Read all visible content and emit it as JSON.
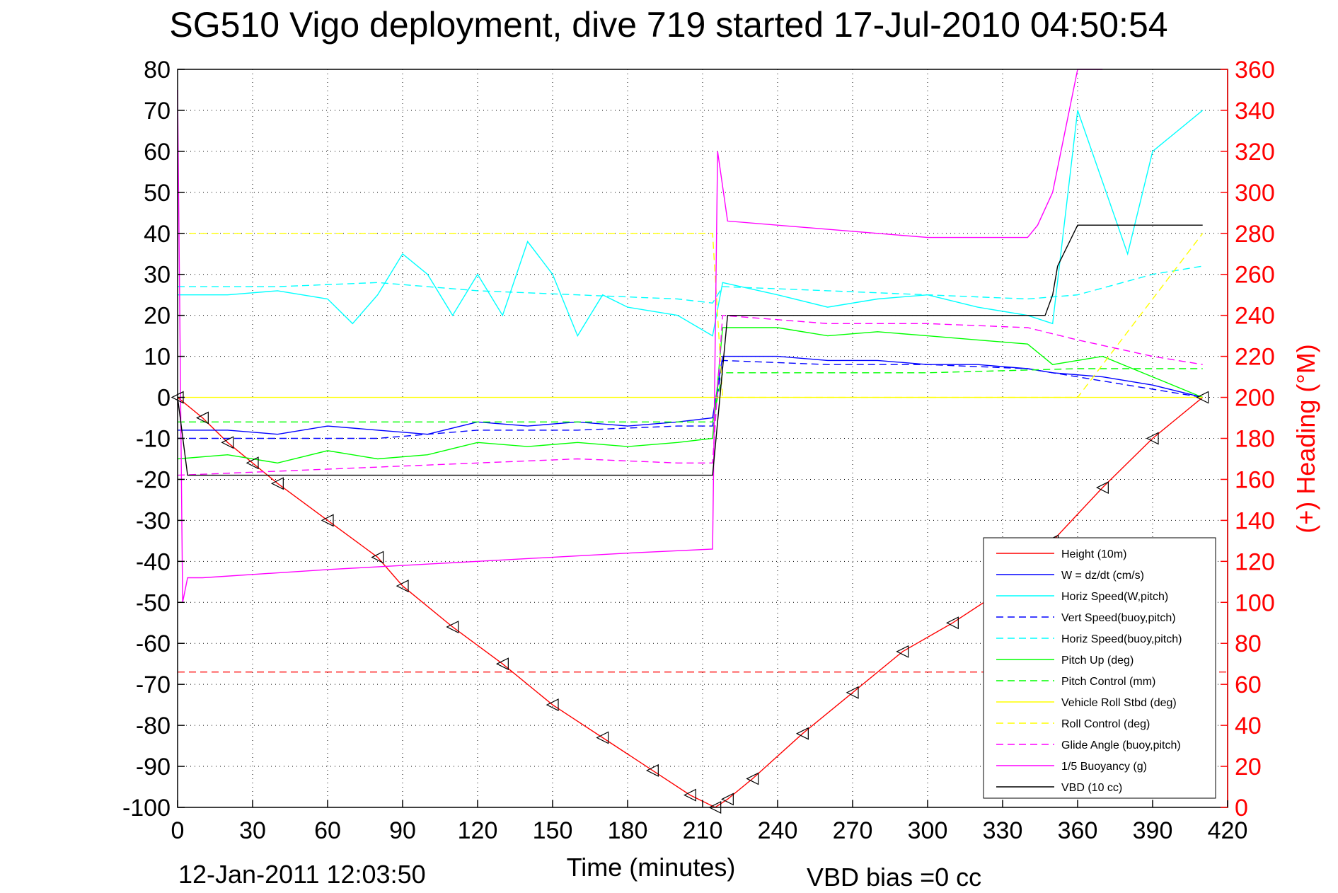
{
  "chart_data": {
    "type": "line",
    "title": "SG510 Vigo deployment, dive 719 started 17-Jul-2010 04:50:54",
    "xlabel": "Time (minutes)",
    "ylabel_right": "(+) Heading (°M)",
    "footer_date": "12-Jan-2011 12:03:50",
    "footer_bias": "VBD bias =0 cc",
    "xlim": [
      0,
      420
    ],
    "ylim_left": [
      -100,
      80
    ],
    "ylim_right": [
      0,
      360
    ],
    "grid": true,
    "legend_position": "bottom-right",
    "x_ticks": [
      "0",
      "30",
      "60",
      "90",
      "120",
      "150",
      "180",
      "210",
      "240",
      "270",
      "300",
      "330",
      "360",
      "390",
      "420"
    ],
    "y_ticks_left": [
      "80",
      "70",
      "60",
      "50",
      "40",
      "30",
      "20",
      "10",
      "0",
      "-10",
      "-20",
      "-30",
      "-40",
      "-50",
      "-60",
      "-70",
      "-80",
      "-90",
      "-100"
    ],
    "y_ticks_right": [
      "360",
      "340",
      "320",
      "300",
      "280",
      "260",
      "240",
      "220",
      "200",
      "180",
      "160",
      "140",
      "120",
      "100",
      "80",
      "60",
      "40",
      "20",
      "0"
    ],
    "series": [
      {
        "name": "Height (10m)",
        "color": "#ff0000",
        "style": "solid",
        "x": [
          0,
          10,
          20,
          30,
          40,
          60,
          80,
          90,
          110,
          130,
          150,
          170,
          190,
          205,
          215,
          220,
          230,
          250,
          270,
          290,
          310,
          330,
          350,
          370,
          390,
          410
        ],
        "y": [
          0,
          -5,
          -11,
          -16,
          -21,
          -30,
          -39,
          -46,
          -56,
          -65,
          -75,
          -83,
          -91,
          -97,
          -100,
          -98,
          -93,
          -82,
          -72,
          -62,
          -55,
          -47,
          -35,
          -22,
          -10,
          0
        ]
      },
      {
        "name": "W = dz/dt (cm/s)",
        "color": "#0000ff",
        "style": "solid",
        "x": [
          0,
          20,
          40,
          60,
          80,
          100,
          120,
          140,
          160,
          180,
          200,
          214,
          218,
          240,
          260,
          280,
          300,
          320,
          340,
          350,
          370,
          390,
          410
        ],
        "y": [
          -8,
          -8,
          -9,
          -7,
          -8,
          -9,
          -6,
          -7,
          -6,
          -7,
          -6,
          -5,
          10,
          10,
          9,
          9,
          8,
          8,
          7,
          6,
          5,
          3,
          0
        ]
      },
      {
        "name": "Horiz Speed(W,pitch)",
        "color": "#00ffff",
        "style": "solid",
        "x": [
          0,
          20,
          40,
          60,
          70,
          80,
          90,
          100,
          110,
          120,
          130,
          140,
          150,
          160,
          170,
          180,
          200,
          214,
          218,
          240,
          260,
          280,
          300,
          320,
          340,
          350,
          360,
          380,
          390,
          410
        ],
        "y": [
          25,
          25,
          26,
          24,
          18,
          25,
          35,
          30,
          20,
          30,
          20,
          38,
          30,
          15,
          25,
          22,
          20,
          15,
          28,
          25,
          22,
          24,
          25,
          22,
          20,
          18,
          70,
          35,
          60,
          70
        ]
      },
      {
        "name": "Vert Speed(buoy,pitch)",
        "color": "#0000ff",
        "style": "dashed",
        "x": [
          0,
          40,
          80,
          120,
          160,
          200,
          214,
          218,
          260,
          300,
          340,
          360,
          390,
          410
        ],
        "y": [
          -10,
          -10,
          -10,
          -8,
          -8,
          -7,
          -7,
          9,
          8,
          8,
          7,
          5,
          2,
          0
        ]
      },
      {
        "name": "Horiz Speed(buoy,pitch)",
        "color": "#00ffff",
        "style": "dashed",
        "x": [
          0,
          40,
          80,
          120,
          160,
          200,
          214,
          218,
          260,
          300,
          340,
          360,
          390,
          410
        ],
        "y": [
          27,
          27,
          28,
          26,
          25,
          24,
          23,
          27,
          26,
          25,
          24,
          25,
          30,
          32
        ]
      },
      {
        "name": "Pitch Up (deg)",
        "color": "#00ff00",
        "style": "solid",
        "x": [
          0,
          20,
          40,
          60,
          80,
          100,
          120,
          140,
          160,
          180,
          200,
          214,
          218,
          240,
          260,
          280,
          300,
          320,
          340,
          350,
          370,
          390,
          410
        ],
        "y": [
          -15,
          -14,
          -16,
          -13,
          -15,
          -14,
          -11,
          -12,
          -11,
          -12,
          -11,
          -10,
          17,
          17,
          15,
          16,
          15,
          14,
          13,
          8,
          10,
          5,
          0
        ]
      },
      {
        "name": "Pitch Control (mm)",
        "color": "#00ff00",
        "style": "dashed",
        "x": [
          0,
          100,
          214,
          218,
          300,
          360,
          410
        ],
        "y": [
          -6,
          -6,
          -6,
          6,
          6,
          7,
          7
        ]
      },
      {
        "name": "Vehicle Roll Stbd (deg)",
        "color": "#ffff00",
        "style": "solid",
        "x": [
          0,
          100,
          200,
          214,
          218,
          300,
          350,
          360,
          410
        ],
        "y": [
          0,
          0,
          0,
          0,
          0,
          0,
          0,
          0,
          0
        ]
      },
      {
        "name": "Roll Control (deg)",
        "color": "#ffff00",
        "style": "dashed",
        "x": [
          0,
          100,
          214,
          218,
          300,
          360,
          410
        ],
        "y": [
          40,
          40,
          40,
          0,
          0,
          0,
          40
        ]
      },
      {
        "name": "Glide Angle (buoy,pitch)",
        "color": "#ff00ff",
        "style": "dashed",
        "x": [
          0,
          40,
          80,
          120,
          160,
          200,
          214,
          218,
          260,
          300,
          340,
          360,
          390,
          410
        ],
        "y": [
          -19,
          -18,
          -17,
          -16,
          -15,
          -16,
          -16,
          20,
          18,
          18,
          17,
          14,
          10,
          8
        ]
      },
      {
        "name": "1/5 Buoyancy (g)",
        "color": "#ff00ff",
        "style": "solid",
        "x": [
          0,
          2,
          4,
          10,
          60,
          120,
          180,
          214,
          216,
          220,
          280,
          300,
          340,
          344,
          350,
          360,
          370
        ],
        "y": [
          75,
          -50,
          -44,
          -44,
          -42,
          -40,
          -38,
          -37,
          60,
          43,
          40,
          39,
          39,
          42,
          50,
          80,
          80
        ]
      },
      {
        "name": "VBD (10 cc)",
        "color": "#000000",
        "style": "solid",
        "x": [
          0,
          4,
          8,
          100,
          214,
          220,
          300,
          347,
          350,
          352,
          360,
          370,
          380,
          410
        ],
        "y": [
          0,
          -19,
          -19,
          -19,
          -19,
          20,
          20,
          20,
          25,
          32,
          42,
          42,
          42,
          42
        ]
      }
    ],
    "reference_lines": [
      {
        "axis": "left",
        "y": -67,
        "color": "#ff0000",
        "style": "dashed"
      }
    ]
  },
  "legend": [
    {
      "label": "Height (10m)",
      "color": "#ff0000",
      "style": "solid"
    },
    {
      "label": "W = dz/dt (cm/s)",
      "color": "#0000ff",
      "style": "solid"
    },
    {
      "label": "Horiz Speed(W,pitch)",
      "color": "#00ffff",
      "style": "solid"
    },
    {
      "label": "Vert Speed(buoy,pitch)",
      "color": "#0000ff",
      "style": "dashed"
    },
    {
      "label": "Horiz Speed(buoy,pitch)",
      "color": "#00ffff",
      "style": "dashed"
    },
    {
      "label": "Pitch Up (deg)",
      "color": "#00ff00",
      "style": "solid"
    },
    {
      "label": "Pitch Control (mm)",
      "color": "#00ff00",
      "style": "dashed"
    },
    {
      "label": "Vehicle Roll Stbd (deg)",
      "color": "#ffff00",
      "style": "solid"
    },
    {
      "label": "Roll Control (deg)",
      "color": "#ffff00",
      "style": "dashed"
    },
    {
      "label": "Glide Angle (buoy,pitch)",
      "color": "#ff00ff",
      "style": "dashed"
    },
    {
      "label": "1/5 Buoyancy (g)",
      "color": "#ff00ff",
      "style": "solid"
    },
    {
      "label": "VBD (10 cc)",
      "color": "#000000",
      "style": "solid"
    }
  ]
}
